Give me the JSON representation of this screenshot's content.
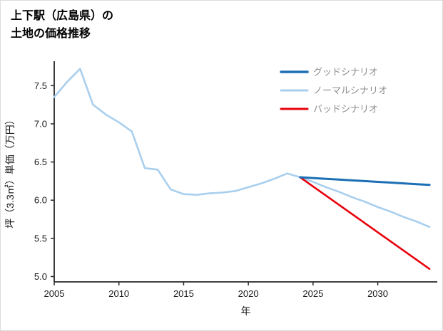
{
  "title": {
    "line1": "上下駅（広島県）の",
    "line2": "土地の価格推移"
  },
  "chart_data": {
    "type": "line",
    "title": "上下駅（広島県）の土地の価格推移",
    "xlabel": "年",
    "ylabel": "坪（3.3㎡）単価（万円）",
    "xlim": [
      2005,
      2034.6
    ],
    "ylim": [
      4.93,
      7.82
    ],
    "xticks": [
      2005,
      2010,
      2015,
      2020,
      2025,
      2030
    ],
    "yticks": [
      5.0,
      5.5,
      6.0,
      6.5,
      7.0,
      7.5
    ],
    "grid": false,
    "legend_position": "top-right",
    "colors": {
      "axis": "#262626",
      "tick_label": "#1a1a1a",
      "legend_text": "#8c8c8c",
      "good": "#1b6fb5",
      "normal": "#a9cfee",
      "bad": "#e8000b"
    },
    "series": [
      {
        "name": "グッドシナリオ",
        "color": "#1b6fb5",
        "width": 3,
        "x": [
          2024,
          2025,
          2026,
          2027,
          2028,
          2029,
          2030,
          2031,
          2032,
          2033,
          2034
        ],
        "y": [
          6.3,
          6.29,
          6.28,
          6.27,
          6.26,
          6.25,
          6.24,
          6.23,
          6.22,
          6.21,
          6.2
        ]
      },
      {
        "name": "ノーマルシナリオ",
        "color": "#a9cfee",
        "width": 2.6,
        "x": [
          2005,
          2006,
          2007,
          2008,
          2009,
          2010,
          2011,
          2012,
          2013,
          2014,
          2015,
          2016,
          2017,
          2018,
          2019,
          2020,
          2021,
          2022,
          2023,
          2024,
          2025,
          2026,
          2027,
          2028,
          2029,
          2030,
          2031,
          2032,
          2033,
          2034
        ],
        "y": [
          7.35,
          7.55,
          7.72,
          7.25,
          7.12,
          7.02,
          6.9,
          6.42,
          6.4,
          6.14,
          6.08,
          6.07,
          6.09,
          6.1,
          6.12,
          6.17,
          6.22,
          6.28,
          6.35,
          6.3,
          6.24,
          6.17,
          6.11,
          6.04,
          5.98,
          5.91,
          5.85,
          5.78,
          5.72,
          5.65
        ]
      },
      {
        "name": "バッドシナリオ",
        "color": "#e8000b",
        "width": 2.6,
        "x": [
          2024,
          2025,
          2026,
          2027,
          2028,
          2029,
          2030,
          2031,
          2032,
          2033,
          2034
        ],
        "y": [
          6.3,
          6.18,
          6.06,
          5.94,
          5.82,
          5.7,
          5.58,
          5.46,
          5.34,
          5.22,
          5.1
        ]
      }
    ]
  }
}
